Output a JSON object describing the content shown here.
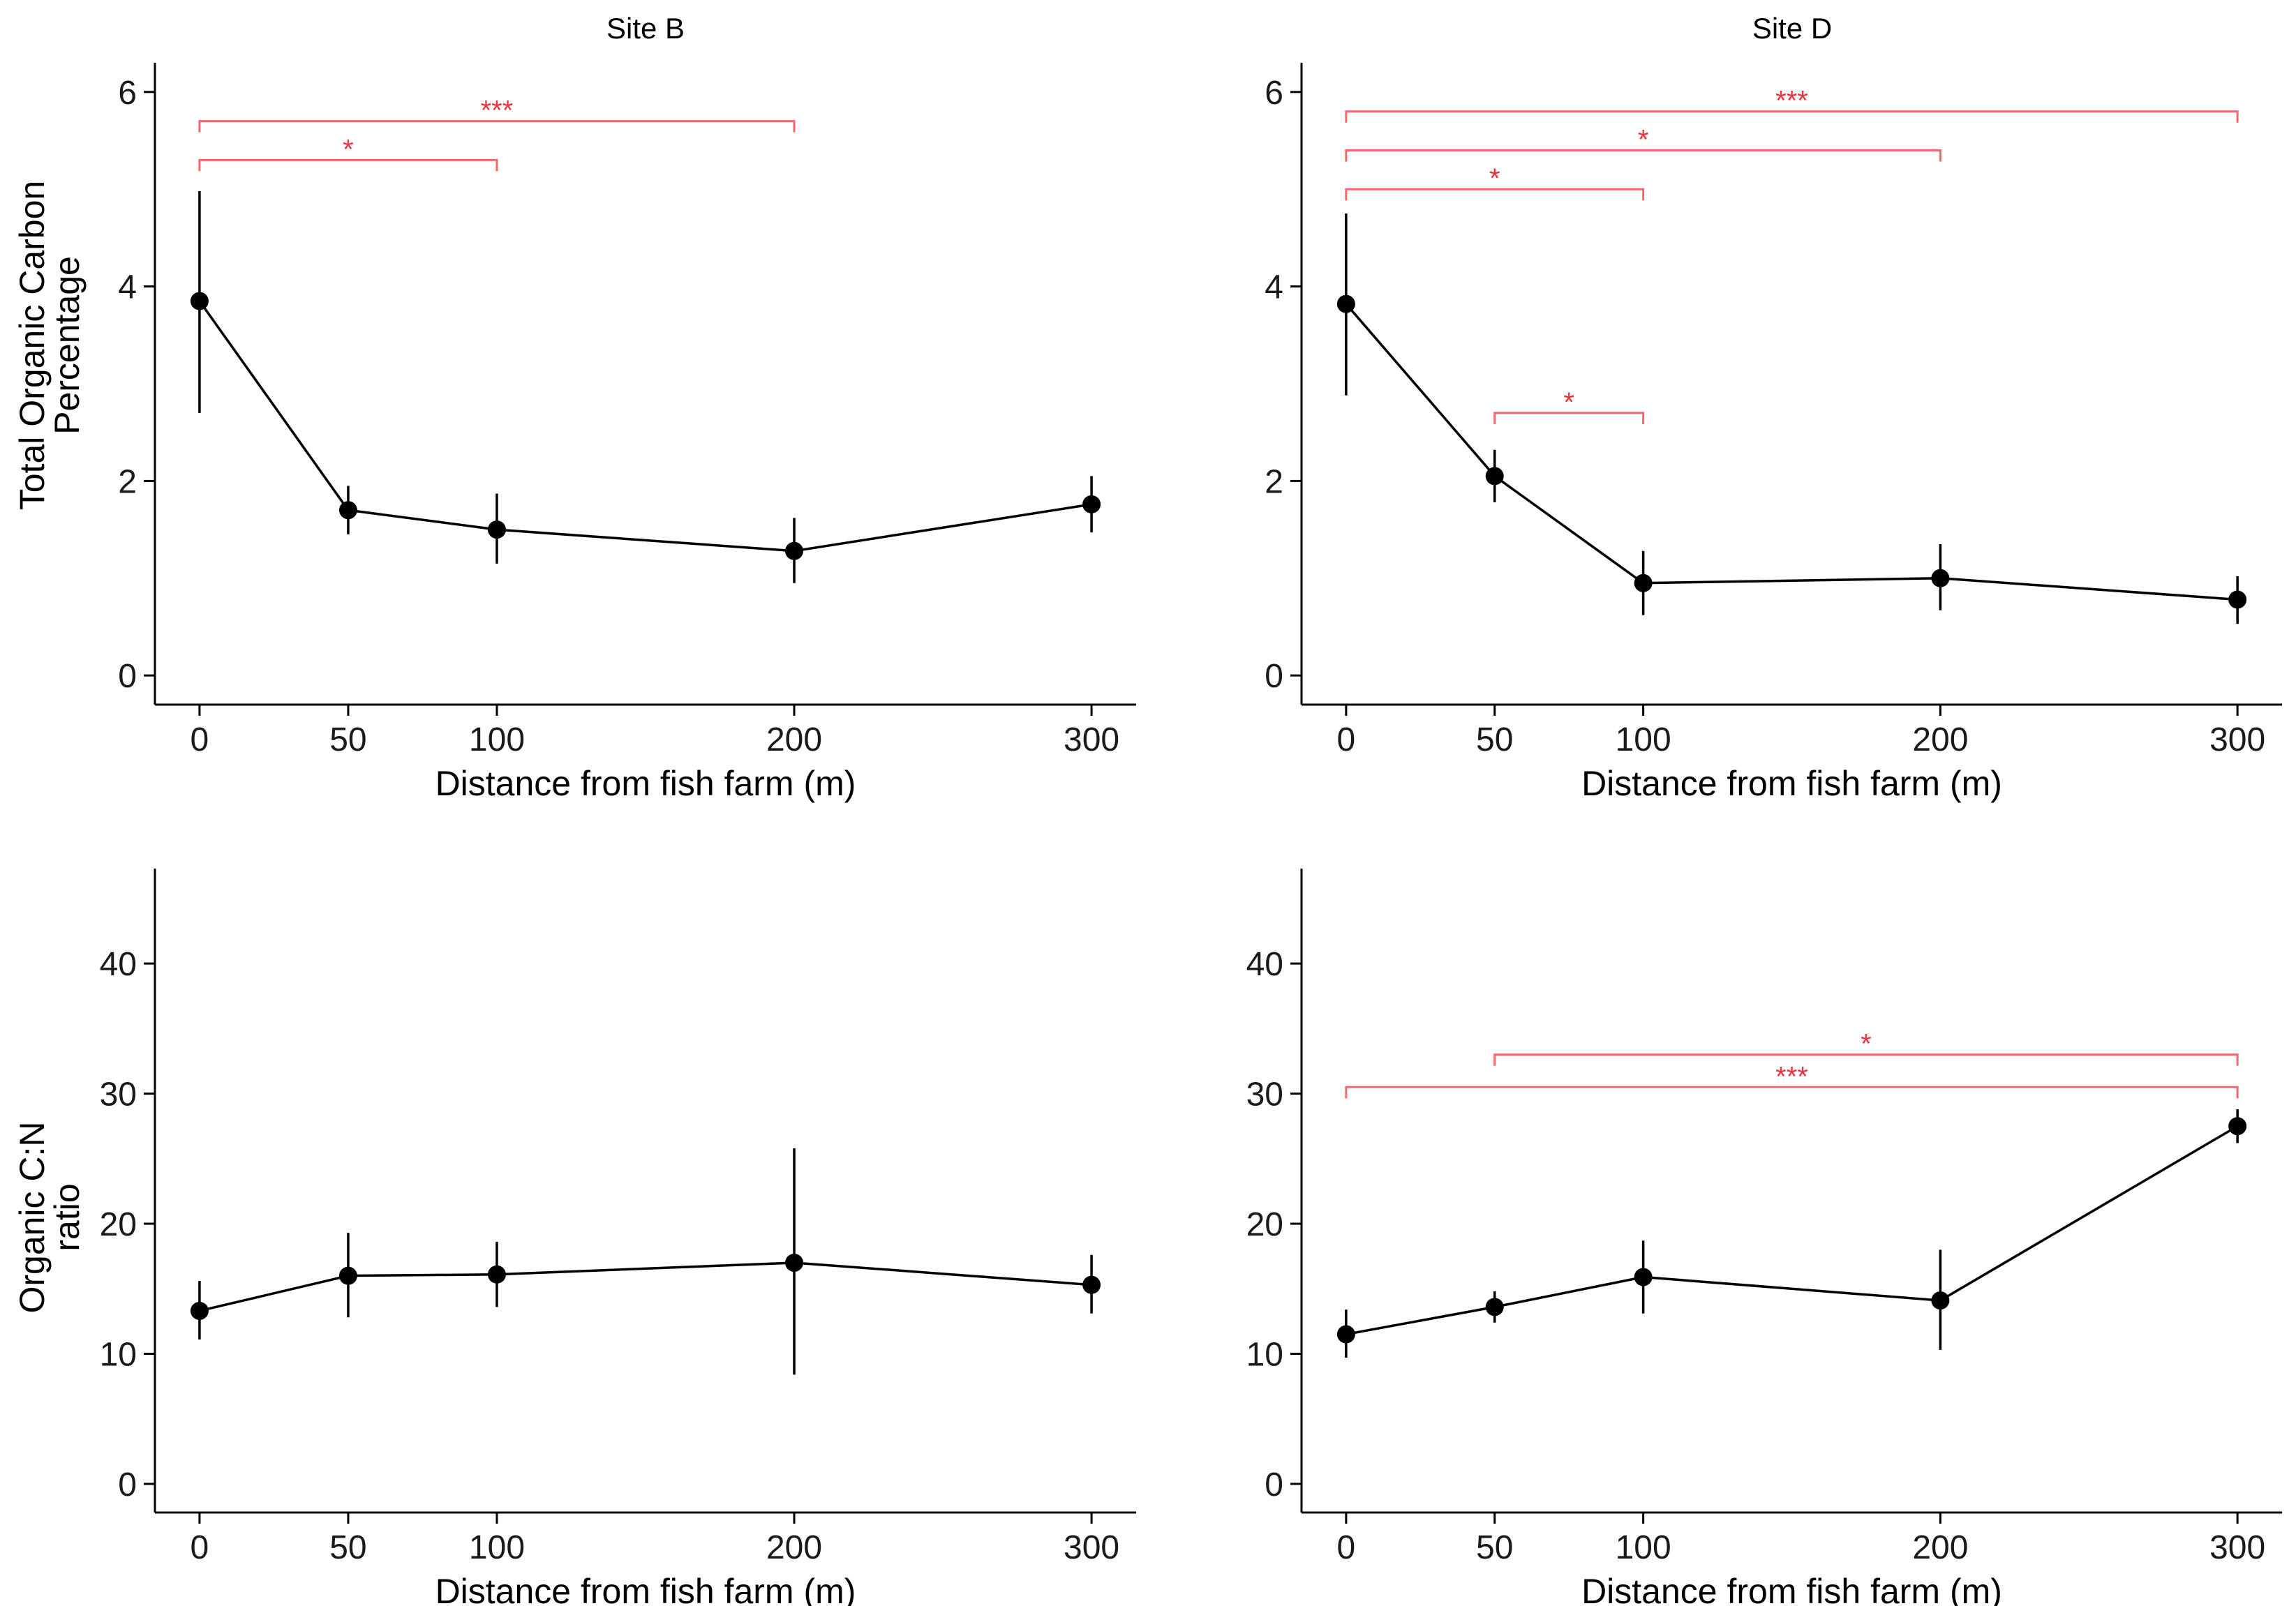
{
  "figure": {
    "panel_titles": [
      "Site B",
      "Site D"
    ],
    "row_ylabels": [
      [
        "Total Organic Carbon",
        "Percentage"
      ],
      [
        "Organic C:N",
        "ratio"
      ]
    ],
    "colors": {
      "data": "#000000",
      "significance": "#f4686d",
      "significance_text": "#e8353d"
    }
  },
  "chart_data": [
    {
      "type": "line",
      "panel": "top-left",
      "title": "Site B",
      "xlabel": "Distance from fish farm (m)",
      "ylabel": "Total Organic Carbon Percentage",
      "x": [
        0,
        50,
        100,
        200,
        300
      ],
      "xticks": [
        0,
        50,
        100,
        200,
        300
      ],
      "xlim": [
        -15,
        315
      ],
      "yticks": [
        0,
        2,
        4,
        6
      ],
      "ylim": [
        -0.3,
        6.3
      ],
      "series": [
        {
          "name": "Site B",
          "values": [
            3.85,
            1.7,
            1.5,
            1.28,
            1.76
          ],
          "err_low": [
            2.7,
            1.45,
            1.15,
            0.95,
            1.47
          ],
          "err_high": [
            4.98,
            1.95,
            1.87,
            1.62,
            2.05
          ]
        }
      ],
      "significance": [
        {
          "x1": 0,
          "x2": 100,
          "y": 5.3,
          "label": "*"
        },
        {
          "x1": 0,
          "x2": 200,
          "y": 5.7,
          "label": "***"
        }
      ]
    },
    {
      "type": "line",
      "panel": "top-right",
      "title": "Site D",
      "xlabel": "Distance from fish farm (m)",
      "ylabel": "",
      "x": [
        0,
        50,
        100,
        200,
        300
      ],
      "xticks": [
        0,
        50,
        100,
        200,
        300
      ],
      "xlim": [
        -15,
        315
      ],
      "yticks": [
        0,
        2,
        4,
        6
      ],
      "ylim": [
        -0.3,
        6.3
      ],
      "series": [
        {
          "name": "Site D",
          "values": [
            3.82,
            2.05,
            0.95,
            1.0,
            0.78
          ],
          "err_low": [
            2.88,
            1.78,
            0.62,
            0.67,
            0.53
          ],
          "err_high": [
            4.75,
            2.32,
            1.28,
            1.35,
            1.02
          ]
        }
      ],
      "significance": [
        {
          "x1": 0,
          "x2": 300,
          "y": 5.8,
          "label": "***"
        },
        {
          "x1": 0,
          "x2": 200,
          "y": 5.4,
          "label": "*"
        },
        {
          "x1": 0,
          "x2": 100,
          "y": 5.0,
          "label": "*"
        },
        {
          "x1": 50,
          "x2": 100,
          "y": 2.7,
          "label": "*"
        }
      ]
    },
    {
      "type": "line",
      "panel": "bottom-left",
      "title": "",
      "xlabel": "Distance from fish farm (m)",
      "ylabel": "Organic C:N ratio",
      "x": [
        0,
        50,
        100,
        200,
        300
      ],
      "xticks": [
        0,
        50,
        100,
        200,
        300
      ],
      "xlim": [
        -15,
        315
      ],
      "yticks": [
        0,
        10,
        20,
        30,
        40
      ],
      "ylim": [
        -2.2,
        47.3
      ],
      "series": [
        {
          "name": "Site B",
          "values": [
            13.3,
            16.0,
            16.1,
            17.0,
            15.3
          ],
          "err_low": [
            11.1,
            12.8,
            13.6,
            8.4,
            13.1
          ],
          "err_high": [
            15.6,
            19.3,
            18.6,
            25.8,
            17.6
          ]
        }
      ],
      "significance": []
    },
    {
      "type": "line",
      "panel": "bottom-right",
      "title": "",
      "xlabel": "Distance from fish farm (m)",
      "ylabel": "",
      "x": [
        0,
        50,
        100,
        200,
        300
      ],
      "xticks": [
        0,
        50,
        100,
        200,
        300
      ],
      "xlim": [
        -15,
        315
      ],
      "yticks": [
        0,
        10,
        20,
        30,
        40
      ],
      "ylim": [
        -2.2,
        47.3
      ],
      "series": [
        {
          "name": "Site D",
          "values": [
            11.5,
            13.6,
            15.9,
            14.1,
            27.5
          ],
          "err_low": [
            9.7,
            12.4,
            13.1,
            10.3,
            26.2
          ],
          "err_high": [
            13.4,
            14.8,
            18.7,
            18.0,
            28.8
          ]
        }
      ],
      "significance": [
        {
          "x1": 50,
          "x2": 300,
          "y": 33.0,
          "label": "*"
        },
        {
          "x1": 0,
          "x2": 300,
          "y": 30.5,
          "label": "***"
        }
      ]
    }
  ]
}
